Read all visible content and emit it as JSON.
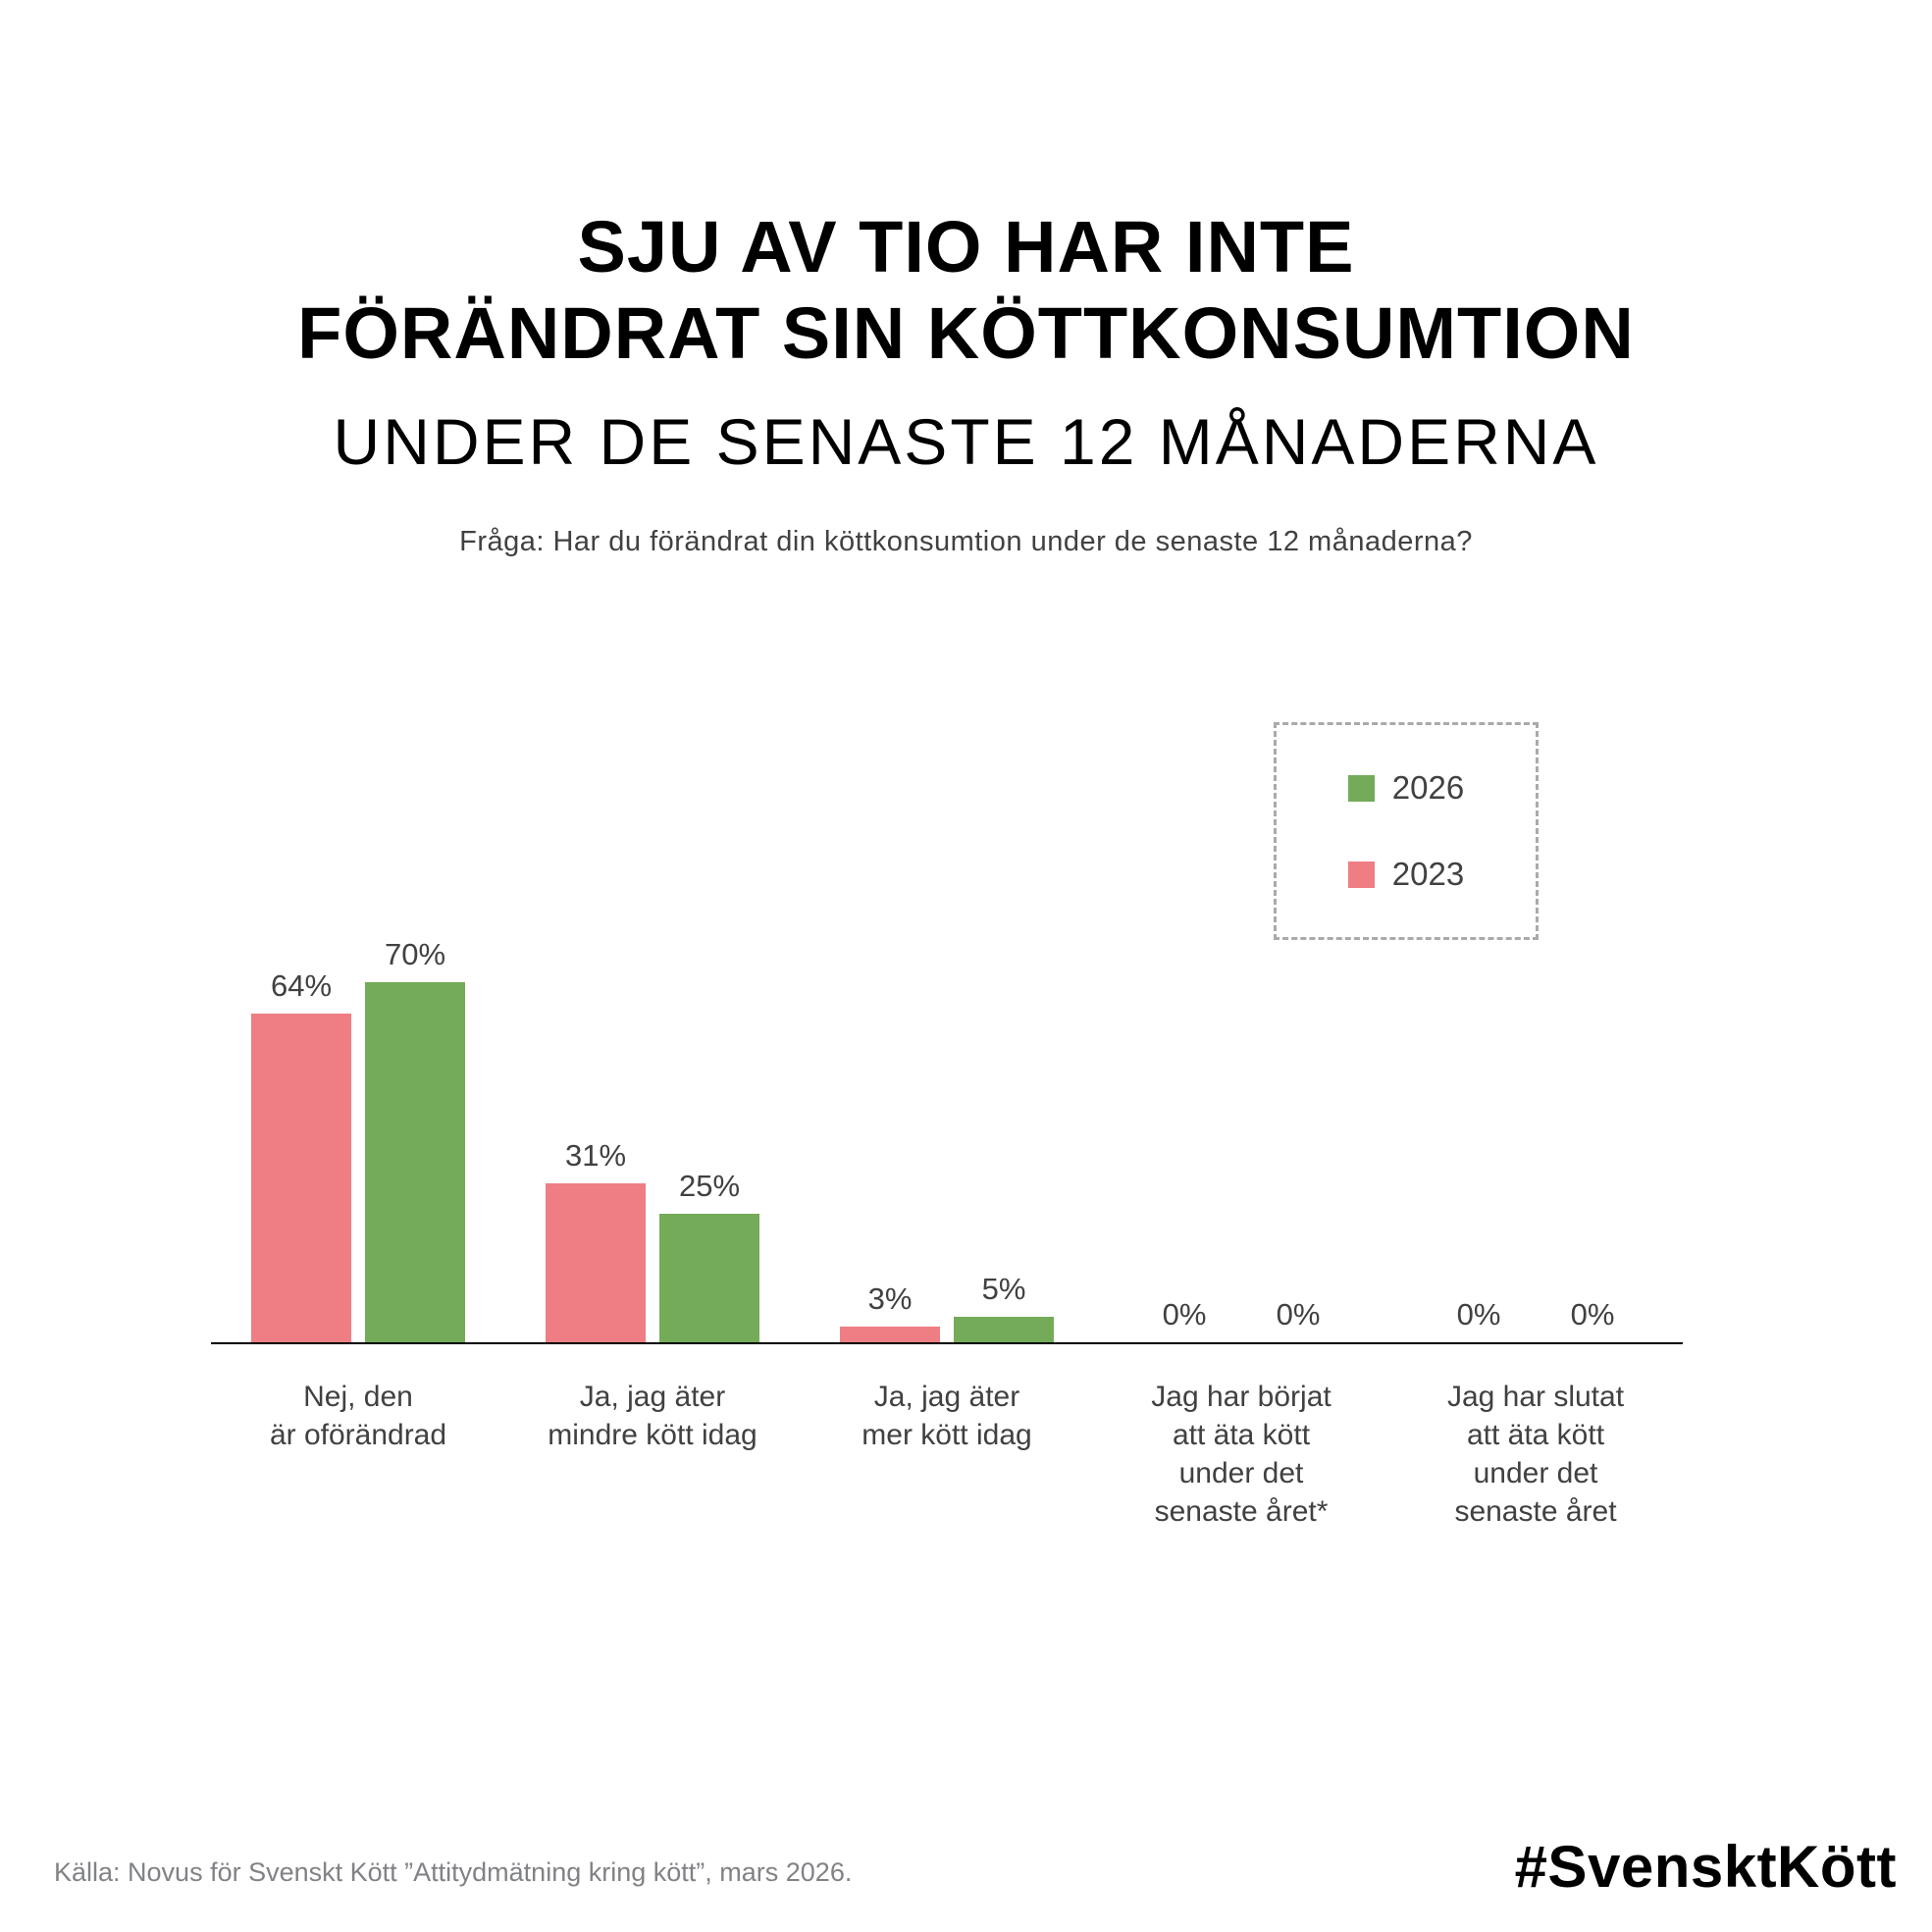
{
  "header": {
    "title_line1": "SJU AV TIO HAR INTE",
    "title_line2": "FÖRÄNDRAT SIN KÖTTKONSUMTION",
    "title_line3": "UNDER DE SENASTE 12 MÅNADERNA",
    "question": "Fråga: Har du förändrat din köttkonsumtion under de senaste 12 månaderna?"
  },
  "chart_data": {
    "type": "bar",
    "title": "Sju av tio har inte förändrat sin köttkonsumtion under de senaste 12 månaderna",
    "categories": [
      [
        "Nej, den",
        "är oförändrad"
      ],
      [
        "Ja, jag äter",
        "mindre kött idag"
      ],
      [
        "Ja, jag äter",
        "mer kött idag"
      ],
      [
        "Jag har börjat",
        "att äta kött",
        "under det",
        "senaste året*"
      ],
      [
        "Jag har slutat",
        "att äta kött",
        "under det",
        "senaste året"
      ]
    ],
    "series": [
      {
        "name": "2023",
        "color": "#ee7e84",
        "values": [
          64,
          31,
          3,
          0,
          0
        ]
      },
      {
        "name": "2026",
        "color": "#73ab59",
        "values": [
          70,
          25,
          5,
          0,
          0
        ]
      }
    ],
    "legend": [
      {
        "label": "2026",
        "color": "#73ab59"
      },
      {
        "label": "2023",
        "color": "#ee7e84"
      }
    ],
    "value_suffix": "%",
    "xlabel": "",
    "ylabel": "",
    "ylim": [
      0,
      100
    ],
    "grid": false,
    "legend_position": "upper right",
    "bar_order": [
      "2023",
      "2026"
    ]
  },
  "footer": {
    "source": "Källa: Novus för Svenskt Kött ”Attitydmätning kring kött”, mars 2026.",
    "hashtag": "#SvensktKött"
  }
}
